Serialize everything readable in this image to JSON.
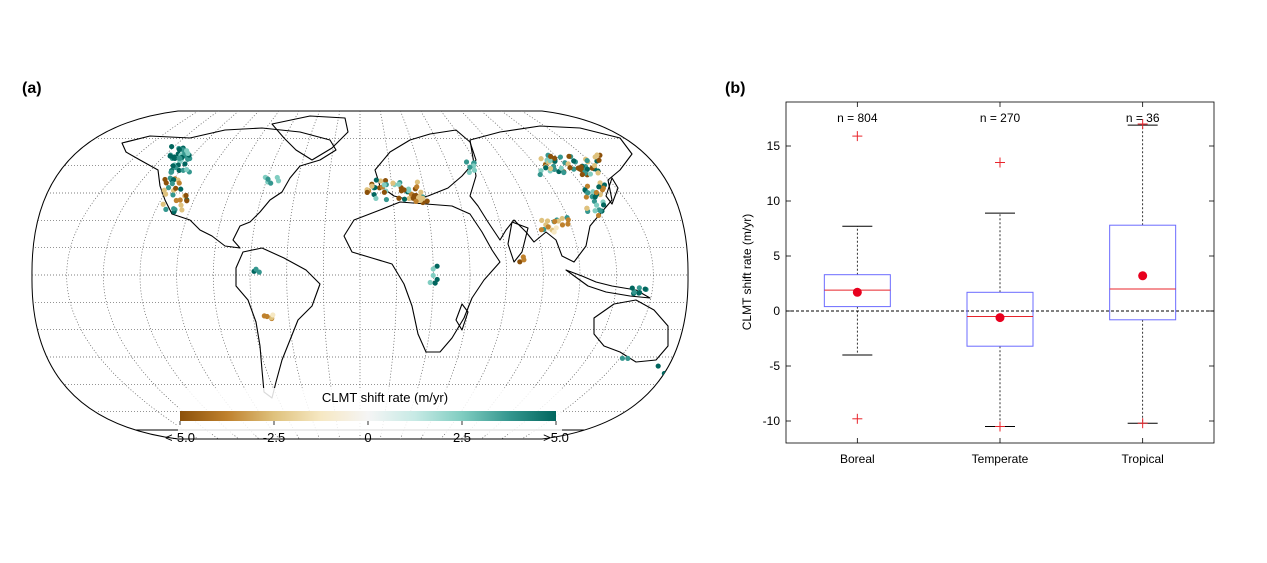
{
  "panels": {
    "a_label": "(a)",
    "b_label": "(b)"
  },
  "map": {
    "colorbar_title": "CLMT shift rate (m/yr)",
    "colorbar_ticks": [
      "<-5.0",
      "-2.5",
      "0",
      "2.5",
      ">5.0"
    ],
    "colorbar_colors": [
      "#8c510a",
      "#bf812d",
      "#dfc27d",
      "#f6e8c3",
      "#f5f5f5",
      "#c7eae5",
      "#80cdc1",
      "#35978f",
      "#01665e"
    ]
  },
  "chart_data": {
    "type": "box",
    "categories": [
      "Boreal",
      "Temperate",
      "Tropical"
    ],
    "ylabel": "CLMT shift rate (m/yr)",
    "ylim": [
      -12,
      19
    ],
    "yticks": [
      -10,
      -5,
      0,
      5,
      10,
      15
    ],
    "counts": [
      "n = 804",
      "n = 270",
      "n = 36"
    ],
    "boxes": [
      {
        "q1": 0.4,
        "median": 1.9,
        "q3": 3.3,
        "whisker_low": -4.0,
        "whisker_high": 7.7,
        "mean": 1.7,
        "outliers": [
          15.9,
          -9.8
        ]
      },
      {
        "q1": -3.2,
        "median": -0.5,
        "q3": 1.7,
        "whisker_low": -10.5,
        "whisker_high": 8.9,
        "mean": -0.6,
        "outliers": [
          13.5,
          -10.5
        ]
      },
      {
        "q1": -0.8,
        "median": 2.0,
        "q3": 7.8,
        "whisker_low": -10.2,
        "whisker_high": 16.9,
        "mean": 3.2,
        "outliers": [
          17.0,
          -10.2
        ]
      }
    ],
    "zero_line": true,
    "colors": {
      "box": "#6b6bff",
      "median": "#e8242b",
      "mean": "#e8001e",
      "outlier": "#e8242b"
    }
  }
}
